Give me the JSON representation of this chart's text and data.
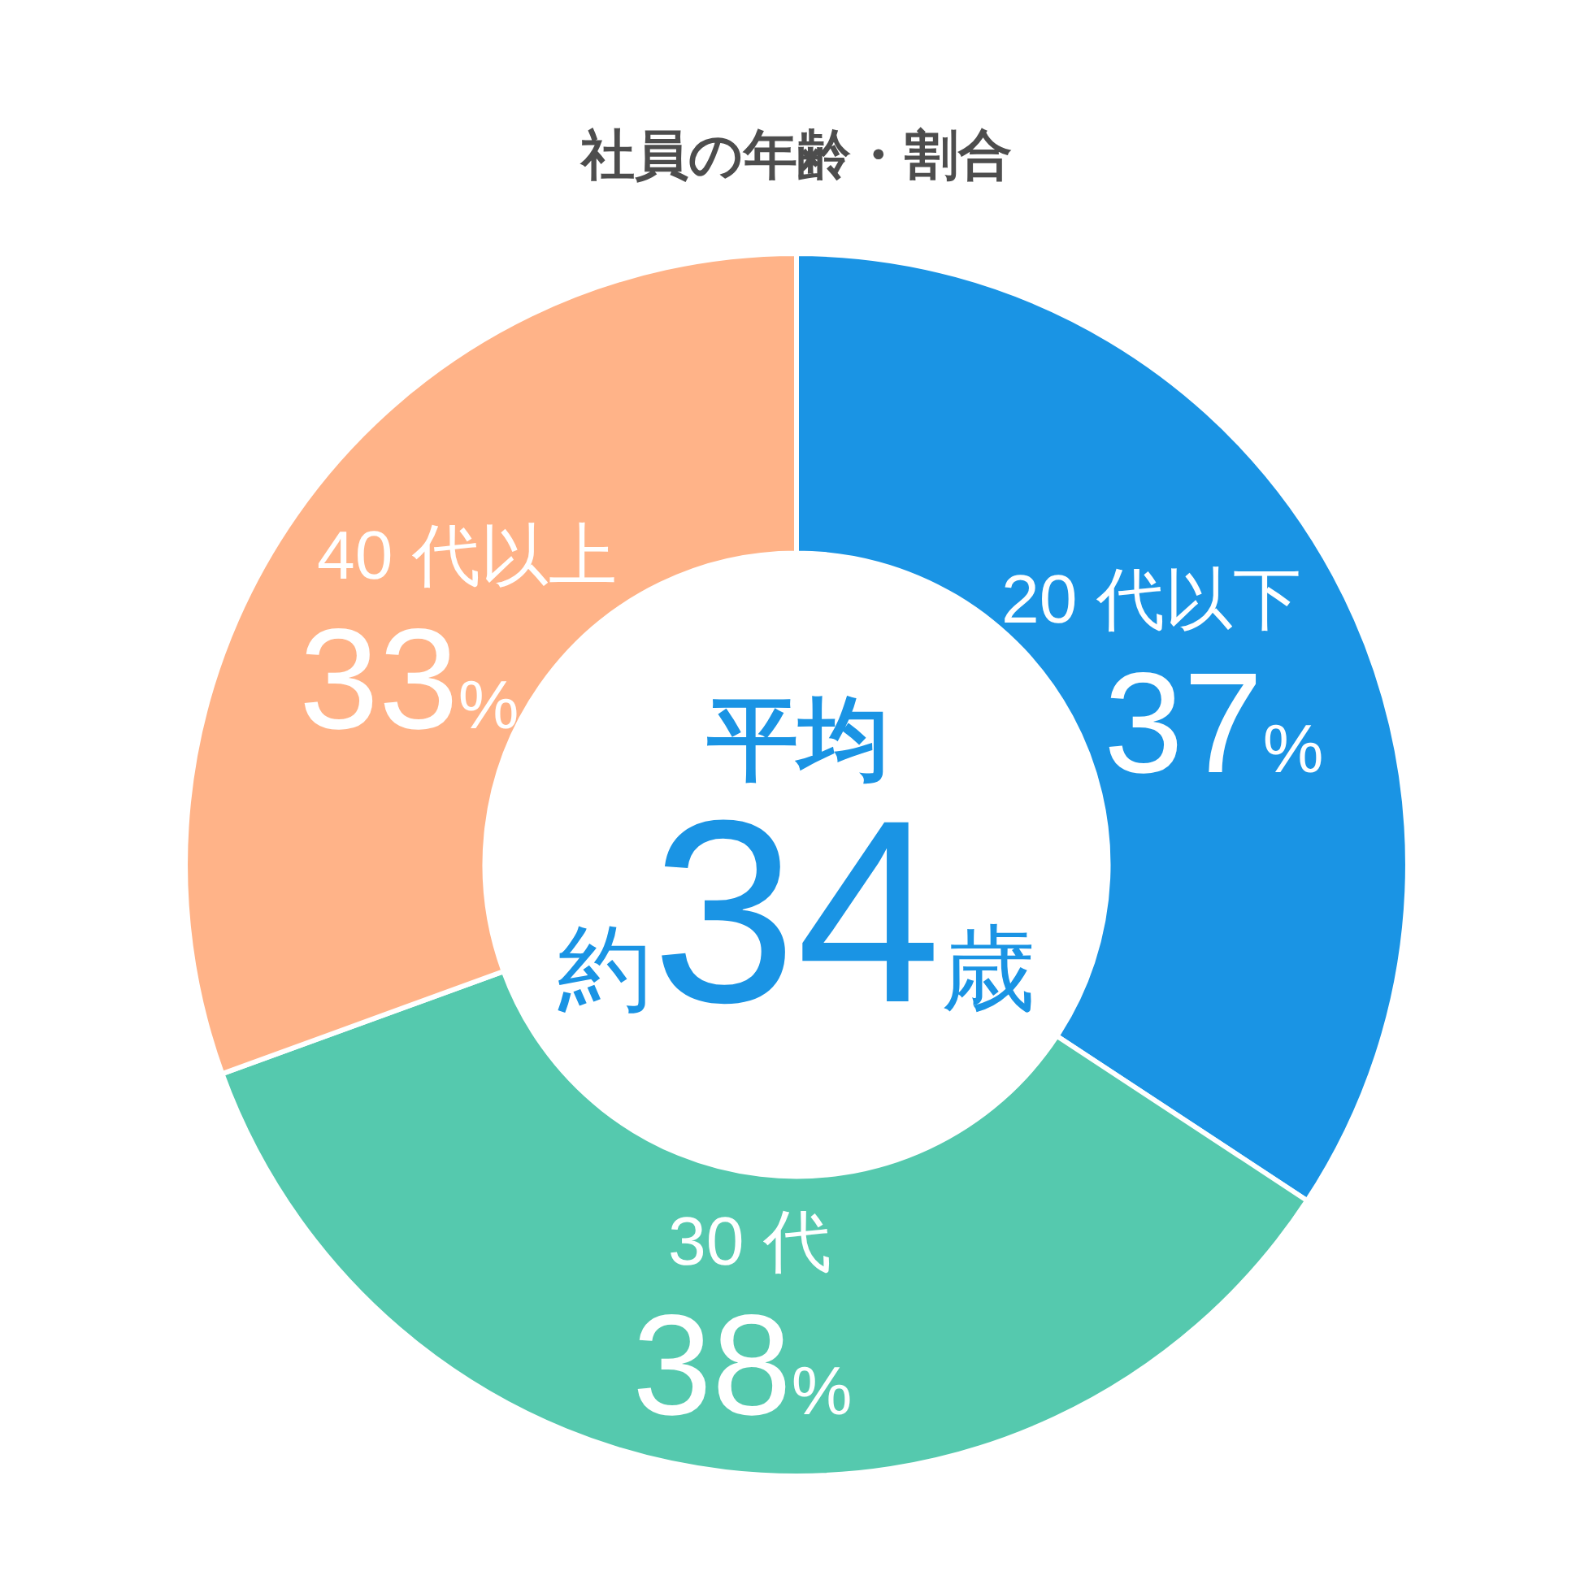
{
  "chart_data": {
    "type": "donut",
    "title": "社員の年齢・割合",
    "categories": [
      "20 代以下",
      "30 代",
      "40 代以上"
    ],
    "values": [
      37,
      38,
      33
    ],
    "colors": [
      "#1a94e4",
      "#55c9ae",
      "#ffb388"
    ],
    "value_labels": [
      "37%",
      "38%",
      "33%"
    ],
    "annotations": [
      "平均",
      "約34歳"
    ]
  }
}
